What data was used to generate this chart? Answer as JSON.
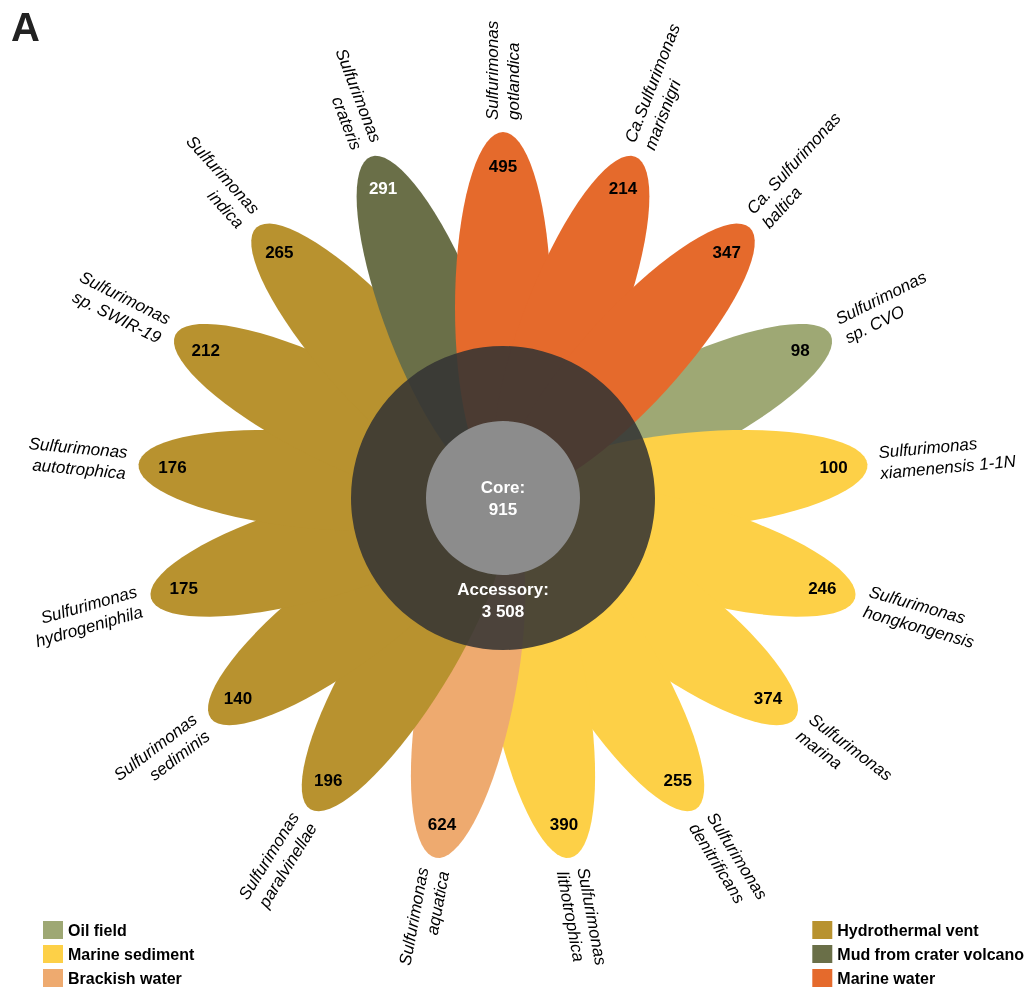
{
  "chart_data": {
    "type": "other",
    "title": "A",
    "categories": [
      "Sulfurimonas\ngotlandica",
      "Ca.Sulfurimonas\nmarisnigri",
      "Ca. Sulfurimonas\nbaltica",
      "Sulfurimonas\nsp. CVO",
      "Sulfurimonas\nxiamenensis 1-1N",
      "Sulfurimonas\nhongkongensis",
      "Sulfurimonas\nmarina",
      "Sulfurimonas\ndenitrificans",
      "Sulfurimonas\nlithotrophica",
      "Sulfurimonas\naquatica",
      "Sulfurimonas\nparalvinellae",
      "Sulfurimonas\nsediminis",
      "Sulfurimonas\nhydrogeniphila",
      "Sulfurimonas\nautotrophica",
      "Sulfurimonas\nsp. SWIR-19",
      "Sulfurimonas\nindica",
      "Sulfurimonas\ncrateris"
    ],
    "series": [
      {
        "name": "Oil field",
        "color": "#9ea874",
        "values": [
          null,
          null,
          null,
          98,
          null,
          null,
          null,
          null,
          null,
          null,
          null,
          null,
          null,
          null,
          null,
          null,
          null
        ]
      },
      {
        "name": "Marine sediment",
        "color": "#fdd047",
        "values": [
          null,
          null,
          null,
          null,
          100,
          246,
          374,
          255,
          390,
          null,
          null,
          null,
          null,
          null,
          null,
          null,
          null
        ]
      },
      {
        "name": "Brackish water",
        "color": "#eeaa6f",
        "values": [
          null,
          null,
          null,
          null,
          null,
          null,
          null,
          null,
          null,
          624,
          null,
          null,
          null,
          null,
          null,
          null,
          null
        ]
      },
      {
        "name": "Hydrothermal vent",
        "color": "#b8922f",
        "values": [
          null,
          null,
          null,
          null,
          null,
          null,
          null,
          null,
          null,
          null,
          196,
          140,
          175,
          176,
          212,
          265,
          null
        ]
      },
      {
        "name": "Mud from crater volcano",
        "color": "#6a6f48",
        "values": [
          null,
          null,
          null,
          null,
          null,
          null,
          null,
          null,
          null,
          null,
          null,
          null,
          null,
          null,
          null,
          null,
          291
        ]
      },
      {
        "name": "Marine water",
        "color": "#e56a2c",
        "values": [
          495,
          214,
          347,
          null,
          null,
          null,
          null,
          null,
          null,
          null,
          null,
          null,
          null,
          null,
          null,
          null,
          null
        ]
      }
    ],
    "annotations": [
      "Core:\n915",
      "Accessory:\n3 508"
    ],
    "data_labels": true,
    "legend": "bottom"
  }
}
